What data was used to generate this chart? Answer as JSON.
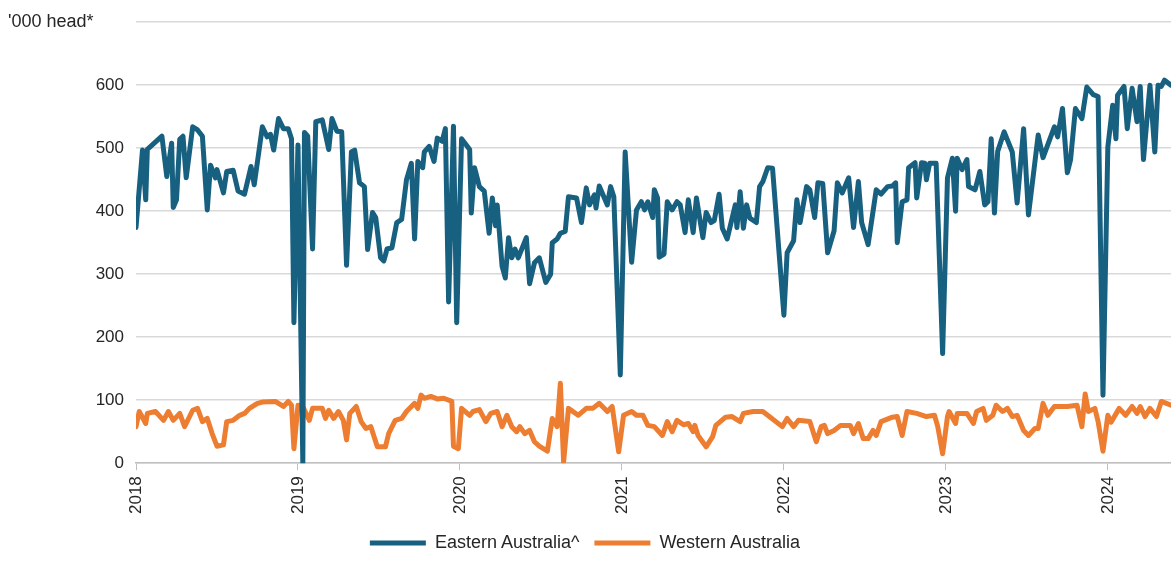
{
  "chart_data": {
    "type": "line",
    "ylabel": "'000 head*",
    "xlim": [
      2018,
      2024.39
    ],
    "xticks": [
      2018,
      2019,
      2020,
      2021,
      2022,
      2023,
      2024
    ],
    "ylim": [
      0,
      700
    ],
    "yticks": [
      0,
      100,
      200,
      300,
      400,
      500,
      600,
      {
        "value": 700,
        "label": null
      }
    ],
    "grid": "y",
    "legend": "bottom",
    "marker": "none",
    "line_style": "solid",
    "series": [
      {
        "name": "Eastern Australia^",
        "color": "#186080",
        "x": [
          2018.0,
          2018.04,
          2018.06,
          2018.07,
          2018.16,
          2018.19,
          2018.22,
          2018.23,
          2018.25,
          2018.27,
          2018.29,
          2018.31,
          2018.35,
          2018.38,
          2018.41,
          2018.44,
          2018.46,
          2018.49,
          2018.5,
          2018.54,
          2018.56,
          2018.6,
          2018.63,
          2018.67,
          2018.71,
          2018.73,
          2018.78,
          2018.81,
          2018.83,
          2018.85,
          2018.88,
          2018.91,
          2018.94,
          2018.96,
          2018.975,
          2019.0,
          2019.03,
          2019.04,
          2019.06,
          2019.09,
          2019.11,
          2019.15,
          2019.19,
          2019.21,
          2019.24,
          2019.27,
          2019.3,
          2019.33,
          2019.35,
          2019.38,
          2019.41,
          2019.43,
          2019.46,
          2019.48,
          2019.51,
          2019.53,
          2019.55,
          2019.58,
          2019.61,
          2019.64,
          2019.67,
          2019.7,
          2019.72,
          2019.74,
          2019.77,
          2019.78,
          2019.81,
          2019.84,
          2019.86,
          2019.89,
          2019.91,
          2019.93,
          2019.96,
          2019.98,
          2020.01,
          2020.06,
          2020.07,
          2020.09,
          2020.12,
          2020.15,
          2020.18,
          2020.2,
          2020.22,
          2020.23,
          2020.26,
          2020.28,
          2020.3,
          2020.32,
          2020.34,
          2020.36,
          2020.41,
          2020.43,
          2020.46,
          2020.49,
          2020.53,
          2020.56,
          2020.57,
          2020.6,
          2020.62,
          2020.65,
          2020.67,
          2020.72,
          2020.75,
          2020.78,
          2020.8,
          2020.83,
          2020.84,
          2020.86,
          2020.91,
          2020.93,
          2020.95,
          2020.99,
          2021.02,
          2021.06,
          2021.09,
          2021.12,
          2021.14,
          2021.16,
          2021.19,
          2021.2,
          2021.22,
          2021.23,
          2021.26,
          2021.28,
          2021.31,
          2021.34,
          2021.36,
          2021.39,
          2021.41,
          2021.44,
          2021.46,
          2021.48,
          2021.5,
          2021.52,
          2021.55,
          2021.57,
          2021.6,
          2021.62,
          2021.65,
          2021.7,
          2021.71,
          2021.73,
          2021.75,
          2021.77,
          2021.79,
          2021.83,
          2021.85,
          2021.87,
          2021.9,
          2021.93,
          2022.0,
          2022.02,
          2022.06,
          2022.08,
          2022.1,
          2022.14,
          2022.16,
          2022.19,
          2022.21,
          2022.24,
          2022.27,
          2022.31,
          2022.33,
          2022.36,
          2022.4,
          2022.43,
          2022.46,
          2022.48,
          2022.52,
          2022.57,
          2022.6,
          2022.64,
          2022.67,
          2022.69,
          2022.7,
          2022.73,
          2022.76,
          2022.77,
          2022.81,
          2022.82,
          2022.85,
          2022.87,
          2022.88,
          2022.9,
          2022.94,
          2022.98,
          2023.01,
          2023.04,
          2023.06,
          2023.07,
          2023.1,
          2023.13,
          2023.14,
          2023.18,
          2023.21,
          2023.24,
          2023.26,
          2023.28,
          2023.3,
          2023.32,
          2023.36,
          2023.41,
          2023.44,
          2023.48,
          2023.51,
          2023.57,
          2023.6,
          2023.63,
          2023.67,
          2023.69,
          2023.72,
          2023.75,
          2023.77,
          2023.8,
          2023.84,
          2023.87,
          2023.91,
          2023.94,
          2023.97,
          2024.0,
          2024.03,
          2024.05,
          2024.06,
          2024.1,
          2024.12,
          2024.15,
          2024.18,
          2024.2,
          2024.22,
          2024.26,
          2024.29,
          2024.31,
          2024.33,
          2024.35,
          2024.39
        ],
        "values": [
          374,
          497,
          418,
          498,
          519,
          455,
          508,
          406,
          418,
          514,
          519,
          453,
          534,
          529,
          519,
          402,
          473,
          453,
          466,
          429,
          463,
          465,
          432,
          427,
          471,
          442,
          534,
          518,
          522,
          497,
          547,
          531,
          531,
          515,
          223,
          505,
          0,
          525,
          519,
          340,
          542,
          545,
          498,
          547,
          527,
          526,
          314,
          494,
          497,
          445,
          439,
          339,
          398,
          390,
          326,
          321,
          340,
          342,
          382,
          387,
          450,
          476,
          356,
          479,
          469,
          494,
          503,
          479,
          516,
          511,
          531,
          256,
          535,
          223,
          515,
          498,
          397,
          469,
          439,
          432,
          365,
          421,
          377,
          410,
          313,
          294,
          358,
          326,
          340,
          326,
          358,
          285,
          318,
          326,
          287,
          300,
          350,
          356,
          365,
          368,
          423,
          421,
          382,
          437,
          410,
          426,
          405,
          440,
          410,
          439,
          423,
          140,
          494,
          319,
          402,
          415,
          402,
          415,
          390,
          434,
          421,
          327,
          332,
          415,
          402,
          415,
          410,
          366,
          418,
          366,
          421,
          389,
          358,
          398,
          382,
          385,
          427,
          373,
          356,
          410,
          374,
          431,
          373,
          410,
          389,
          382,
          439,
          447,
          469,
          468,
          235,
          334,
          353,
          418,
          382,
          439,
          434,
          390,
          445,
          444,
          334,
          369,
          445,
          429,
          453,
          374,
          447,
          382,
          347,
          434,
          427,
          439,
          440,
          445,
          350,
          415,
          418,
          469,
          477,
          421,
          477,
          476,
          450,
          476,
          476,
          174,
          453,
          484,
          400,
          484,
          466,
          482,
          439,
          434,
          463,
          410,
          415,
          515,
          397,
          495,
          526,
          494,
          413,
          531,
          394,
          521,
          485,
          506,
          534,
          518,
          563,
          461,
          482,
          563,
          547,
          597,
          585,
          582,
          108,
          502,
          568,
          515,
          584,
          598,
          531,
          595,
          542,
          598,
          482,
          600,
          494,
          600,
          598,
          608,
          600
        ]
      },
      {
        "name": "Western Australia",
        "color": "#ed7d31",
        "x": [
          2018.0,
          2018.02,
          2018.06,
          2018.07,
          2018.12,
          2018.17,
          2018.2,
          2018.23,
          2018.27,
          2018.3,
          2018.35,
          2018.38,
          2018.41,
          2018.44,
          2018.47,
          2018.5,
          2018.54,
          2018.56,
          2018.6,
          2018.64,
          2018.67,
          2018.7,
          2018.75,
          2018.78,
          2018.86,
          2018.91,
          2018.94,
          2018.96,
          2018.975,
          2019.0,
          2019.03,
          2019.07,
          2019.09,
          2019.15,
          2019.17,
          2019.19,
          2019.22,
          2019.25,
          2019.28,
          2019.3,
          2019.32,
          2019.36,
          2019.39,
          2019.42,
          2019.45,
          2019.49,
          2019.54,
          2019.56,
          2019.6,
          2019.64,
          2019.67,
          2019.72,
          2019.74,
          2019.76,
          2019.78,
          2019.82,
          2019.86,
          2019.9,
          2019.95,
          2019.96,
          2019.99,
          2020.01,
          2020.06,
          2020.08,
          2020.12,
          2020.16,
          2020.19,
          2020.23,
          2020.26,
          2020.29,
          2020.32,
          2020.35,
          2020.37,
          2020.4,
          2020.43,
          2020.46,
          2020.49,
          2020.54,
          2020.57,
          2020.6,
          2020.62,
          2020.64,
          2020.67,
          2020.73,
          2020.78,
          2020.82,
          2020.86,
          2020.91,
          2020.94,
          2020.98,
          2021.01,
          2021.06,
          2021.09,
          2021.13,
          2021.16,
          2021.2,
          2021.25,
          2021.28,
          2021.31,
          2021.34,
          2021.38,
          2021.41,
          2021.44,
          2021.45,
          2021.47,
          2021.52,
          2021.56,
          2021.58,
          2021.64,
          2021.68,
          2021.73,
          2021.75,
          2021.81,
          2021.87,
          2021.91,
          2021.99,
          2022.02,
          2022.06,
          2022.09,
          2022.16,
          2022.2,
          2022.23,
          2022.25,
          2022.27,
          2022.31,
          2022.35,
          2022.41,
          2022.43,
          2022.46,
          2022.49,
          2022.52,
          2022.55,
          2022.57,
          2022.6,
          2022.67,
          2022.7,
          2022.73,
          2022.76,
          2022.82,
          2022.88,
          2022.93,
          2022.95,
          2022.98,
          2023.01,
          2023.02,
          2023.06,
          2023.07,
          2023.13,
          2023.17,
          2023.19,
          2023.23,
          2023.25,
          2023.29,
          2023.31,
          2023.35,
          2023.38,
          2023.41,
          2023.44,
          2023.48,
          2023.51,
          2023.55,
          2023.57,
          2023.6,
          2023.63,
          2023.67,
          2023.71,
          2023.75,
          2023.81,
          2023.84,
          2023.86,
          2023.88,
          2023.92,
          2023.94,
          2023.97,
          2024.0,
          2024.02,
          2024.07,
          2024.11,
          2024.15,
          2024.18,
          2024.2,
          2024.23,
          2024.26,
          2024.3,
          2024.33,
          2024.39
        ],
        "values": [
          58,
          82,
          63,
          79,
          82,
          68,
          82,
          68,
          79,
          58,
          84,
          87,
          66,
          71,
          47,
          27,
          29,
          66,
          68,
          76,
          79,
          87,
          95,
          97,
          98,
          90,
          98,
          92,
          23,
          92,
          90,
          68,
          87,
          87,
          71,
          84,
          71,
          82,
          68,
          37,
          79,
          90,
          66,
          55,
          58,
          26,
          26,
          47,
          68,
          71,
          82,
          95,
          87,
          108,
          103,
          106,
          102,
          103,
          98,
          27,
          23,
          87,
          76,
          82,
          85,
          66,
          79,
          82,
          58,
          76,
          58,
          50,
          58,
          47,
          52,
          34,
          27,
          19,
          71,
          58,
          127,
          2,
          87,
          76,
          87,
          87,
          95,
          82,
          90,
          18,
          76,
          82,
          76,
          76,
          60,
          58,
          44,
          66,
          50,
          68,
          61,
          63,
          50,
          60,
          44,
          26,
          42,
          60,
          73,
          74,
          66,
          79,
          82,
          82,
          74,
          58,
          71,
          58,
          68,
          66,
          34,
          58,
          60,
          47,
          52,
          60,
          60,
          47,
          63,
          39,
          39,
          52,
          44,
          66,
          73,
          74,
          44,
          82,
          79,
          74,
          76,
          58,
          15,
          74,
          82,
          63,
          79,
          79,
          63,
          82,
          87,
          68,
          76,
          92,
          82,
          87,
          74,
          76,
          52,
          44,
          55,
          55,
          95,
          76,
          90,
          90,
          90,
          92,
          58,
          110,
          82,
          87,
          66,
          19,
          76,
          65,
          87,
          76,
          90,
          79,
          90,
          74,
          87,
          74,
          98,
          92
        ]
      }
    ]
  }
}
